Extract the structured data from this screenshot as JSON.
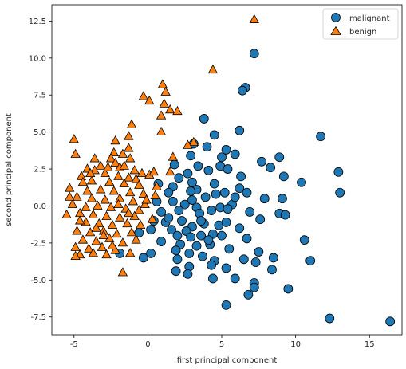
{
  "chart_data": {
    "type": "scatter",
    "xlabel": "first principal component",
    "ylabel": "second principal component",
    "xlim": [
      -6.5,
      17.2
    ],
    "ylim": [
      -8.7,
      13.6
    ],
    "xticks": [
      -5,
      0,
      5,
      10,
      15
    ],
    "yticks": [
      -7.5,
      -5.0,
      -2.5,
      0.0,
      2.5,
      5.0,
      7.5,
      10.0,
      12.5
    ],
    "grid": false,
    "legend_position": "top-right",
    "series": [
      {
        "name": "malignant",
        "marker": "circle",
        "color": "#1f77b4",
        "points": [
          [
            7.2,
            10.3
          ],
          [
            6.6,
            8.0
          ],
          [
            6.4,
            7.8
          ],
          [
            3.8,
            5.9
          ],
          [
            6.2,
            5.1
          ],
          [
            11.7,
            4.7
          ],
          [
            4.5,
            4.8
          ],
          [
            5.3,
            3.8
          ],
          [
            3.1,
            4.2
          ],
          [
            4.0,
            4.0
          ],
          [
            2.9,
            3.4
          ],
          [
            8.9,
            3.3
          ],
          [
            7.7,
            3.0
          ],
          [
            5.9,
            3.5
          ],
          [
            5.0,
            3.3
          ],
          [
            3.4,
            2.7
          ],
          [
            4.9,
            2.7
          ],
          [
            8.3,
            2.6
          ],
          [
            9.2,
            2.0
          ],
          [
            12.9,
            2.3
          ],
          [
            10.4,
            1.6
          ],
          [
            6.3,
            2.0
          ],
          [
            2.7,
            2.2
          ],
          [
            4.1,
            2.4
          ],
          [
            1.8,
            2.8
          ],
          [
            2.1,
            1.9
          ],
          [
            3.0,
            1.6
          ],
          [
            3.3,
            1.1
          ],
          [
            5.4,
            2.5
          ],
          [
            4.5,
            1.5
          ],
          [
            6.2,
            1.2
          ],
          [
            5.2,
            0.9
          ],
          [
            4.6,
            0.8
          ],
          [
            3.9,
            0.6
          ],
          [
            2.9,
            1.0
          ],
          [
            1.7,
            1.3
          ],
          [
            1.4,
            0.9
          ],
          [
            6.7,
            0.9
          ],
          [
            7.9,
            0.5
          ],
          [
            13.0,
            0.9
          ],
          [
            9.1,
            0.5
          ],
          [
            5.7,
            0.1
          ],
          [
            4.9,
            -0.1
          ],
          [
            3.3,
            -0.1
          ],
          [
            2.5,
            0.1
          ],
          [
            1.7,
            0.3
          ],
          [
            0.6,
            0.3
          ],
          [
            0.9,
            -0.4
          ],
          [
            2.1,
            -0.3
          ],
          [
            3.5,
            -0.5
          ],
          [
            4.3,
            -0.3
          ],
          [
            5.4,
            -0.2
          ],
          [
            6.9,
            -0.4
          ],
          [
            7.6,
            -0.9
          ],
          [
            8.9,
            -0.5
          ],
          [
            9.3,
            -0.6
          ],
          [
            0.4,
            -1.0
          ],
          [
            1.2,
            -1.1
          ],
          [
            2.3,
            -1.0
          ],
          [
            3.0,
            -1.4
          ],
          [
            3.8,
            -1.2
          ],
          [
            4.8,
            -1.3
          ],
          [
            5.3,
            -1.1
          ],
          [
            6.2,
            -1.5
          ],
          [
            2.6,
            -1.7
          ],
          [
            1.6,
            -1.6
          ],
          [
            0.2,
            -1.6
          ],
          [
            -0.6,
            -1.8
          ],
          [
            2.0,
            -2.0
          ],
          [
            2.9,
            -2.1
          ],
          [
            3.6,
            -2.0
          ],
          [
            4.4,
            -1.9
          ],
          [
            5.0,
            -2.0
          ],
          [
            6.7,
            -2.2
          ],
          [
            0.9,
            -2.4
          ],
          [
            2.2,
            -2.6
          ],
          [
            3.3,
            -2.7
          ],
          [
            4.2,
            -2.6
          ],
          [
            5.5,
            -2.9
          ],
          [
            7.5,
            -3.1
          ],
          [
            10.6,
            -2.3
          ],
          [
            -0.3,
            -3.5
          ],
          [
            0.2,
            -3.2
          ],
          [
            1.9,
            -3.0
          ],
          [
            2.8,
            -3.2
          ],
          [
            3.7,
            -3.4
          ],
          [
            4.5,
            -3.7
          ],
          [
            6.5,
            -3.6
          ],
          [
            8.5,
            -3.5
          ],
          [
            11.0,
            -3.7
          ],
          [
            2.0,
            -3.6
          ],
          [
            -1.9,
            -3.2
          ],
          [
            1.9,
            -4.4
          ],
          [
            2.8,
            -4.1
          ],
          [
            4.3,
            -4.0
          ],
          [
            5.3,
            -4.2
          ],
          [
            7.3,
            -3.8
          ],
          [
            8.4,
            -4.3
          ],
          [
            2.7,
            -4.6
          ],
          [
            4.4,
            -4.9
          ],
          [
            5.9,
            -4.9
          ],
          [
            7.2,
            -5.2
          ],
          [
            7.2,
            -5.5
          ],
          [
            9.5,
            -5.6
          ],
          [
            6.8,
            -6.0
          ],
          [
            5.3,
            -6.7
          ],
          [
            12.3,
            -7.6
          ],
          [
            16.4,
            -7.8
          ],
          [
            3.6,
            -1.0
          ],
          [
            1.4,
            -0.8
          ],
          [
            0.7,
            1.5
          ],
          [
            3.0,
            0.4
          ],
          [
            4.1,
            -2.3
          ],
          [
            5.9,
            0.6
          ]
        ]
      },
      {
        "name": "benign",
        "marker": "triangle",
        "color": "#ff7f0e",
        "points": [
          [
            7.2,
            12.6
          ],
          [
            4.4,
            9.2
          ],
          [
            1.0,
            8.2
          ],
          [
            1.2,
            7.7
          ],
          [
            -0.3,
            7.4
          ],
          [
            0.1,
            7.1
          ],
          [
            1.1,
            6.9
          ],
          [
            1.5,
            6.5
          ],
          [
            2.0,
            6.4
          ],
          [
            0.9,
            6.1
          ],
          [
            -1.1,
            5.5
          ],
          [
            -1.3,
            4.7
          ],
          [
            -5.0,
            4.5
          ],
          [
            -2.2,
            4.4
          ],
          [
            3.1,
            4.3
          ],
          [
            2.7,
            4.1
          ],
          [
            -1.3,
            3.9
          ],
          [
            -1.7,
            3.5
          ],
          [
            -2.3,
            3.6
          ],
          [
            -4.9,
            3.5
          ],
          [
            -1.2,
            3.2
          ],
          [
            -2.5,
            3.2
          ],
          [
            -3.6,
            3.2
          ],
          [
            -2.2,
            2.9
          ],
          [
            -3.2,
            2.7
          ],
          [
            -4.1,
            2.5
          ],
          [
            -3.6,
            2.4
          ],
          [
            -1.9,
            2.6
          ],
          [
            -0.9,
            2.4
          ],
          [
            -0.4,
            2.2
          ],
          [
            0.1,
            2.1
          ],
          [
            0.4,
            2.3
          ],
          [
            1.5,
            2.3
          ],
          [
            -2.9,
            2.2
          ],
          [
            -2.0,
            2.0
          ],
          [
            -1.3,
            1.9
          ],
          [
            -0.8,
            1.8
          ],
          [
            -4.5,
            2.0
          ],
          [
            -3.8,
            1.7
          ],
          [
            -2.6,
            1.6
          ],
          [
            -1.6,
            1.5
          ],
          [
            -0.6,
            1.4
          ],
          [
            0.6,
            1.3
          ],
          [
            -5.3,
            1.2
          ],
          [
            -4.1,
            1.0
          ],
          [
            -3.2,
            1.1
          ],
          [
            -2.3,
            1.0
          ],
          [
            -1.2,
            0.9
          ],
          [
            -0.3,
            0.8
          ],
          [
            0.5,
            0.7
          ],
          [
            -4.8,
            0.6
          ],
          [
            -3.8,
            0.5
          ],
          [
            -2.9,
            0.4
          ],
          [
            -1.9,
            0.5
          ],
          [
            -1.0,
            0.3
          ],
          [
            -0.2,
            0.1
          ],
          [
            -5.1,
            0.1
          ],
          [
            -4.2,
            -0.1
          ],
          [
            -3.4,
            0.0
          ],
          [
            -2.5,
            -0.1
          ],
          [
            -1.5,
            -0.2
          ],
          [
            -0.6,
            -0.3
          ],
          [
            -5.5,
            -0.6
          ],
          [
            -4.6,
            -0.5
          ],
          [
            -3.7,
            -0.6
          ],
          [
            -2.8,
            -0.7
          ],
          [
            -1.9,
            -0.8
          ],
          [
            -0.9,
            -0.7
          ],
          [
            -4.2,
            -1.1
          ],
          [
            -3.3,
            -1.2
          ],
          [
            -2.4,
            -1.3
          ],
          [
            -1.4,
            -1.2
          ],
          [
            -0.5,
            -1.3
          ],
          [
            -4.8,
            -1.7
          ],
          [
            -3.9,
            -1.8
          ],
          [
            -3.0,
            -1.7
          ],
          [
            -2.1,
            -1.9
          ],
          [
            -1.1,
            -1.8
          ],
          [
            -4.4,
            -2.3
          ],
          [
            -3.5,
            -2.4
          ],
          [
            -2.6,
            -2.2
          ],
          [
            -1.7,
            -2.5
          ],
          [
            -0.8,
            -2.3
          ],
          [
            -4.9,
            -2.8
          ],
          [
            -4.0,
            -2.9
          ],
          [
            -3.1,
            -2.8
          ],
          [
            -2.2,
            -3.0
          ],
          [
            -4.6,
            -3.3
          ],
          [
            -3.7,
            -3.2
          ],
          [
            -2.8,
            -3.3
          ],
          [
            -1.2,
            -3.2
          ],
          [
            -4.9,
            -3.4
          ],
          [
            -1.7,
            -4.5
          ],
          [
            -3.5,
            -1.5
          ],
          [
            -2.0,
            0.1
          ],
          [
            -4.4,
            1.6
          ],
          [
            -2.7,
            2.6
          ],
          [
            -0.1,
            0.4
          ],
          [
            -3.0,
            -2.0
          ],
          [
            -1.3,
            -0.5
          ],
          [
            -5.3,
            0.6
          ],
          [
            0.9,
            5.0
          ],
          [
            1.7,
            3.3
          ],
          [
            0.3,
            -0.9
          ],
          [
            -2.4,
            -2.7
          ],
          [
            -3.9,
            2.2
          ],
          [
            -1.6,
            2.7
          ],
          [
            -4.6,
            -1.0
          ]
        ]
      }
    ]
  }
}
